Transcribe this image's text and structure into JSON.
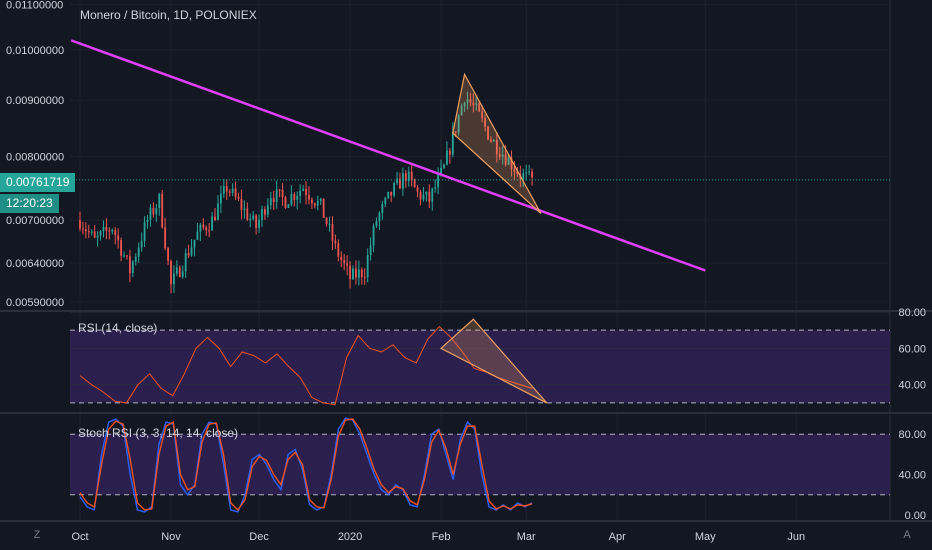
{
  "header": {
    "title": "Monero / Bitcoin, 1D, POLONIEX"
  },
  "tags": {
    "price": "0.00761719",
    "time": "12:20:23"
  },
  "footer": {
    "left_icon_glyph": "Z",
    "right_icon_glyph": "A"
  },
  "colors": {
    "background": "#131722",
    "up": "#26a69a",
    "down": "#ef5350",
    "trendline": "#e040fb",
    "pattern": "#f0a060",
    "rsi_line": "#f4511e",
    "rsi_band": "#2a1f4d",
    "stoch_k": "#2962ff",
    "stoch_d": "#f4511e",
    "text": "#d1d4dc"
  },
  "chart_data": [
    {
      "type": "candlestick",
      "title": "Monero / Bitcoin, 1D, POLONIEX",
      "x_labels": [
        "Oct",
        "Nov",
        "Dec",
        "2020",
        "Feb",
        "Mar",
        "Apr",
        "May",
        "Jun"
      ],
      "y_ticks": [
        "0.00590000",
        "0.00640000",
        "0.00700000",
        "0.00800000",
        "0.00900000",
        "0.01000000",
        "0.01100000"
      ],
      "scale": "log",
      "ylim": [
        0.0058,
        0.0111
      ],
      "last_price": 0.00761719,
      "approx_path": [
        [
          "Oct 1",
          0.007
        ],
        [
          "Oct 6",
          0.0067
        ],
        [
          "Oct 12",
          0.0069
        ],
        [
          "Oct 18",
          0.0063
        ],
        [
          "Oct 24",
          0.007
        ],
        [
          "Oct 28",
          0.0073
        ],
        [
          "Nov 1",
          0.0061
        ],
        [
          "Nov 5",
          0.0064
        ],
        [
          "Nov 10",
          0.0068
        ],
        [
          "Nov 15",
          0.007
        ],
        [
          "Nov 20",
          0.0075
        ],
        [
          "Nov 25",
          0.0072
        ],
        [
          "Nov 30",
          0.0069
        ],
        [
          "Dec 5",
          0.0074
        ],
        [
          "Dec 10",
          0.0073
        ],
        [
          "Dec 16",
          0.0075
        ],
        [
          "Dec 22",
          0.0072
        ],
        [
          "Dec 27",
          0.0066
        ],
        [
          "Jan 1",
          0.0062
        ],
        [
          "Jan 6",
          0.0063
        ],
        [
          "Jan 10",
          0.007
        ],
        [
          "Jan 15",
          0.0074
        ],
        [
          "Jan 20",
          0.0077
        ],
        [
          "Jan 24",
          0.0074
        ],
        [
          "Jan 28",
          0.0073
        ],
        [
          "Feb 2",
          0.0078
        ],
        [
          "Feb 6",
          0.0085
        ],
        [
          "Feb 9",
          0.0091
        ],
        [
          "Feb 13",
          0.0088
        ],
        [
          "Feb 18",
          0.0083
        ],
        [
          "Feb 23",
          0.008
        ],
        [
          "Feb 28",
          0.0077
        ],
        [
          "Mar 3",
          0.0076
        ]
      ],
      "annotations": [
        {
          "kind": "trendline",
          "from": [
            "Sep 28",
            0.0102
          ],
          "to": [
            "May 1",
            0.0063
          ]
        },
        {
          "kind": "falling-wedge",
          "points": [
            [
              "Feb 5",
              0.0084
            ],
            [
              "Feb 9",
              0.0095
            ],
            [
              "Mar 6",
              0.0071
            ]
          ]
        },
        {
          "kind": "price-line",
          "value": 0.00761719
        }
      ]
    },
    {
      "type": "line",
      "title": "RSI (14, close)",
      "y_ticks": [
        "40.00",
        "60.00",
        "80.00"
      ],
      "bands": [
        30,
        70
      ],
      "ylim": [
        25,
        80
      ],
      "values_approx": [
        45,
        40,
        36,
        31,
        30,
        40,
        46,
        38,
        34,
        46,
        60,
        66,
        60,
        50,
        58,
        56,
        52,
        57,
        50,
        44,
        33,
        30,
        29,
        55,
        67,
        60,
        58,
        62,
        55,
        52,
        65,
        72,
        66,
        58,
        49,
        47,
        44,
        42,
        40,
        38
      ],
      "annotations": [
        {
          "kind": "falling-wedge",
          "points": [
            [
              "Feb 1",
              60
            ],
            [
              "Feb 12",
              76
            ],
            [
              "Mar 8",
              30
            ]
          ]
        }
      ]
    },
    {
      "type": "line",
      "title": "Stoch RSI (3, 3, 14, 14, close)",
      "y_ticks": [
        "0.00",
        "40.00",
        "80.00"
      ],
      "bands": [
        20,
        80
      ],
      "ylim": [
        -5,
        100
      ],
      "series": [
        {
          "values_approx": [
            18,
            8,
            5,
            60,
            92,
            95,
            88,
            40,
            5,
            3,
            8,
            70,
            92,
            90,
            30,
            20,
            30,
            80,
            92,
            90,
            50,
            5,
            3,
            20,
            55,
            60,
            50,
            35,
            25,
            60,
            65,
            45,
            10,
            5,
            8,
            40,
            85,
            96,
            94,
            80,
            60,
            40,
            25,
            20,
            30,
            25,
            10,
            8,
            40,
            80,
            85,
            60,
            35,
            75,
            92,
            85,
            40,
            8,
            5,
            10,
            5,
            12,
            8,
            12
          ]
        },
        {
          "values_approx": [
            22,
            12,
            8,
            50,
            85,
            93,
            90,
            55,
            12,
            5,
            6,
            60,
            88,
            92,
            40,
            25,
            28,
            72,
            90,
            91,
            60,
            12,
            5,
            15,
            48,
            58,
            54,
            40,
            30,
            55,
            62,
            50,
            15,
            8,
            7,
            35,
            78,
            94,
            95,
            85,
            66,
            45,
            30,
            22,
            28,
            26,
            14,
            10,
            35,
            72,
            84,
            66,
            40,
            70,
            88,
            88,
            50,
            14,
            6,
            9,
            6,
            10,
            9,
            11
          ]
        }
      ]
    }
  ]
}
